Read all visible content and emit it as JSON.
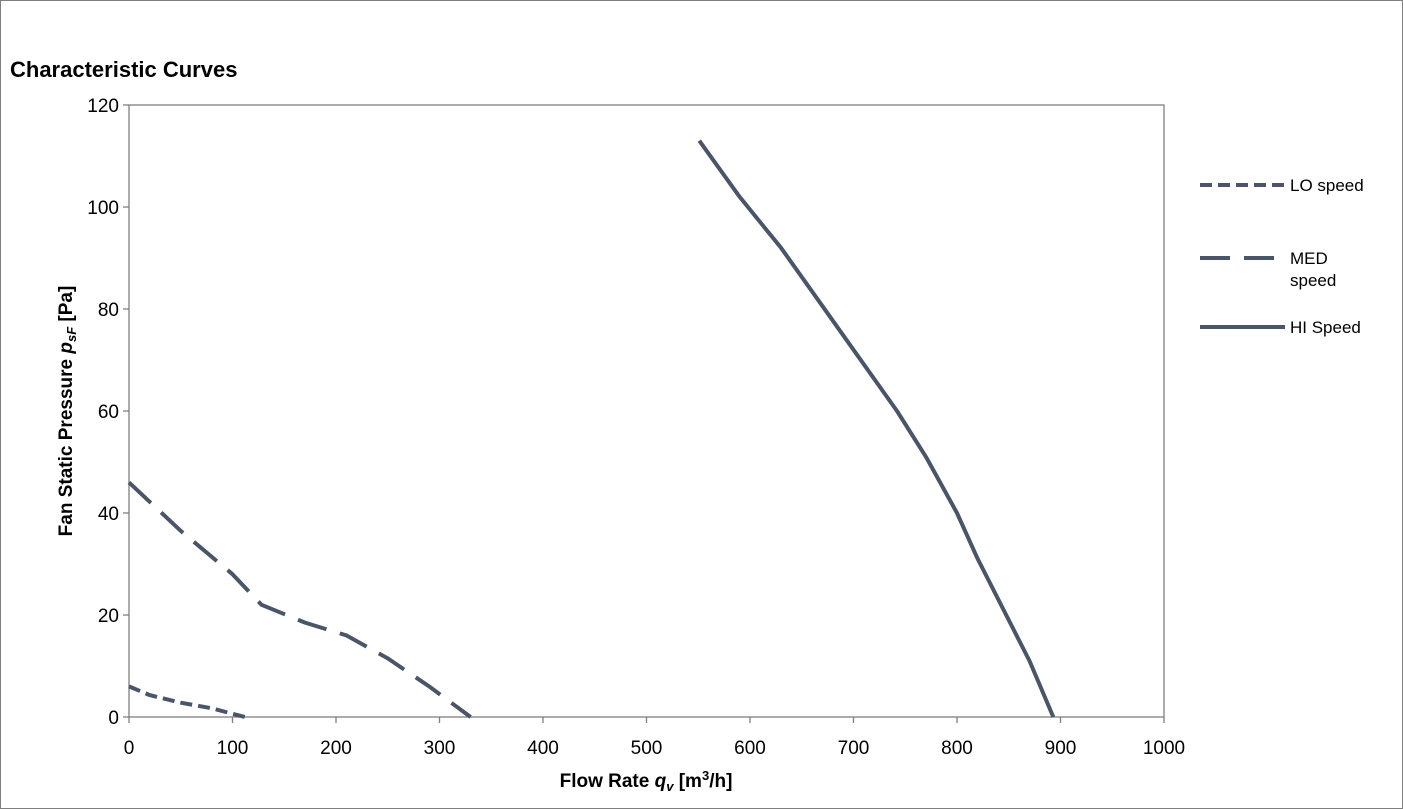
{
  "chart_data": {
    "type": "line",
    "title": "Characteristic Curves",
    "xlabel": {
      "main": "Flow Rate ",
      "var": "q",
      "sub": "v",
      "unit_pre": " [m",
      "sup": "3",
      "unit_post": "/h]"
    },
    "ylabel": {
      "main": "Fan Static Pressure ",
      "var": "p",
      "sub": "sF",
      "unit": " [Pa]"
    },
    "xlim": [
      0,
      1000
    ],
    "ylim": [
      0,
      120
    ],
    "xticks": [
      0,
      100,
      200,
      300,
      400,
      500,
      600,
      700,
      800,
      900,
      1000
    ],
    "yticks": [
      0,
      20,
      40,
      60,
      80,
      100,
      120
    ],
    "grid": false,
    "legend_position": "right",
    "line_color": "#4a5569",
    "series": [
      {
        "name": "LO speed",
        "dash": "short-dash",
        "x": [
          0,
          20,
          50,
          80,
          112
        ],
        "y": [
          6,
          4.3,
          2.8,
          1.7,
          0
        ]
      },
      {
        "name": "MED speed",
        "legend_lines": [
          "MED",
          "speed"
        ],
        "dash": "long-dash",
        "x": [
          0,
          50,
          100,
          128,
          170,
          210,
          250,
          290,
          330
        ],
        "y": [
          46,
          36.5,
          28,
          22,
          18.5,
          16,
          11.5,
          6,
          0
        ]
      },
      {
        "name": "HI Speed",
        "dash": "solid",
        "x": [
          551,
          590,
          630,
          665,
          700,
          742,
          770,
          800,
          820,
          870,
          893
        ],
        "y": [
          113,
          102,
          92,
          82,
          72,
          60,
          51,
          40,
          31,
          11,
          0
        ]
      }
    ]
  }
}
